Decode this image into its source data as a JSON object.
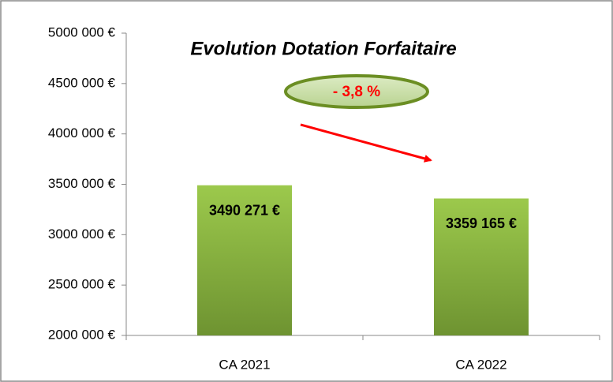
{
  "chart_data": {
    "type": "bar",
    "title": "Evolution Dotation Forfaitaire",
    "annotation": "- 3,8 %",
    "categories": [
      "CA 2021",
      "CA 2022"
    ],
    "values": [
      3490271,
      3359165
    ],
    "value_labels": [
      "3490 271 €",
      "3359 165 €"
    ],
    "ylim": [
      2000000,
      5000000
    ],
    "yticks": [
      {
        "value": 2000000,
        "label": "2000 000 €"
      },
      {
        "value": 2500000,
        "label": "2500 000 €"
      },
      {
        "value": 3000000,
        "label": "3000 000 €"
      },
      {
        "value": 3500000,
        "label": "3500 000 €"
      },
      {
        "value": 4000000,
        "label": "4000 000 €"
      },
      {
        "value": 4500000,
        "label": "4500 000 €"
      },
      {
        "value": 5000000,
        "label": "5000 000 €"
      }
    ],
    "grid": false
  }
}
